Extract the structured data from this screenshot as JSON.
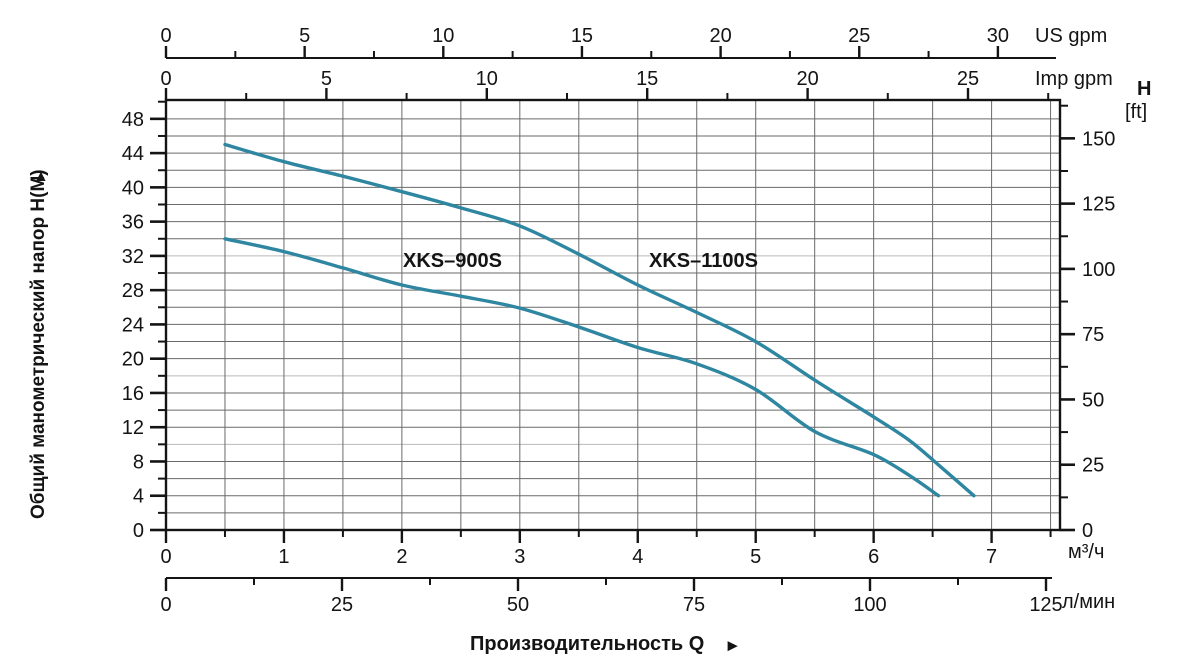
{
  "labels": {
    "y_title": "Общий манометрический напор H(M)",
    "y_title_arrow": "▲",
    "x_title": "Производительность Q",
    "x_title_arrow": "►",
    "us_gpm_unit": "US gpm",
    "imp_gpm_unit": "Imp gpm",
    "h_unit": "H",
    "ft_unit": "[ft]",
    "m3h_unit": "м³/ч",
    "lmin_unit": "л/мин",
    "curve1": "XKS–900S",
    "curve2": "XKS–1100S"
  },
  "chart_data": {
    "type": "line",
    "grid": true,
    "curve_color": "#2E86A1",
    "axis_color": "#141414",
    "grid_color": "#6a6a6a",
    "grid_light_color": "#b9b9b9",
    "y_axis": {
      "label": "Общий манометрический напор H(M)",
      "unit": "м",
      "ticks": [
        0,
        4,
        8,
        12,
        16,
        20,
        24,
        28,
        32,
        36,
        40,
        44,
        48
      ],
      "minor_step": 2,
      "minor_max": 50,
      "range": [
        0,
        50.2
      ]
    },
    "y_axis_secondary": {
      "label": "H [ft]",
      "ticks": [
        0,
        25,
        50,
        75,
        100,
        125,
        150
      ],
      "minor_step": 12.5,
      "minor_max": 162.5
    },
    "top_axes": [
      {
        "unit": "US gpm",
        "ticks": [
          0,
          5,
          10,
          15,
          20,
          25,
          30
        ],
        "minor_step": 2.5,
        "minor_max": 30
      },
      {
        "unit": "Imp gpm",
        "ticks": [
          0,
          5,
          10,
          15,
          20,
          25
        ],
        "minor_step": 2.5,
        "minor_max": 27.5
      }
    ],
    "x_axis": {
      "label": "Производительность Q",
      "unit": "м³/ч",
      "ticks": [
        0,
        1,
        2,
        3,
        4,
        5,
        6,
        7
      ],
      "minor_step": 0.5,
      "minor_max": 7.5,
      "range": [
        0,
        7.58
      ]
    },
    "x_axis_secondary": {
      "unit": "л/мин",
      "ticks": [
        0,
        25,
        50,
        75,
        100,
        125
      ],
      "minor_step": 12.5,
      "minor_max": 125
    },
    "series": [
      {
        "name": "XKS-900S",
        "points": [
          [
            0.5,
            34
          ],
          [
            1,
            32.5
          ],
          [
            1.5,
            30.6
          ],
          [
            2,
            28.6
          ],
          [
            2.5,
            27.3
          ],
          [
            3,
            25.9
          ],
          [
            3.5,
            23.7
          ],
          [
            4,
            21.3
          ],
          [
            4.5,
            19.4
          ],
          [
            5,
            16.4
          ],
          [
            5.5,
            11.5
          ],
          [
            6,
            8.8
          ],
          [
            6.3,
            6.4
          ],
          [
            6.55,
            4
          ]
        ]
      },
      {
        "name": "XKS-1100S",
        "points": [
          [
            0.5,
            45
          ],
          [
            1,
            43
          ],
          [
            1.5,
            41.3
          ],
          [
            2,
            39.5
          ],
          [
            2.5,
            37.6
          ],
          [
            3,
            35.5
          ],
          [
            3.5,
            32.2
          ],
          [
            4,
            28.6
          ],
          [
            4.5,
            25.4
          ],
          [
            5,
            22
          ],
          [
            5.5,
            17.5
          ],
          [
            6,
            13.2
          ],
          [
            6.3,
            10.5
          ],
          [
            6.55,
            7.6
          ],
          [
            6.85,
            4
          ]
        ]
      }
    ]
  }
}
